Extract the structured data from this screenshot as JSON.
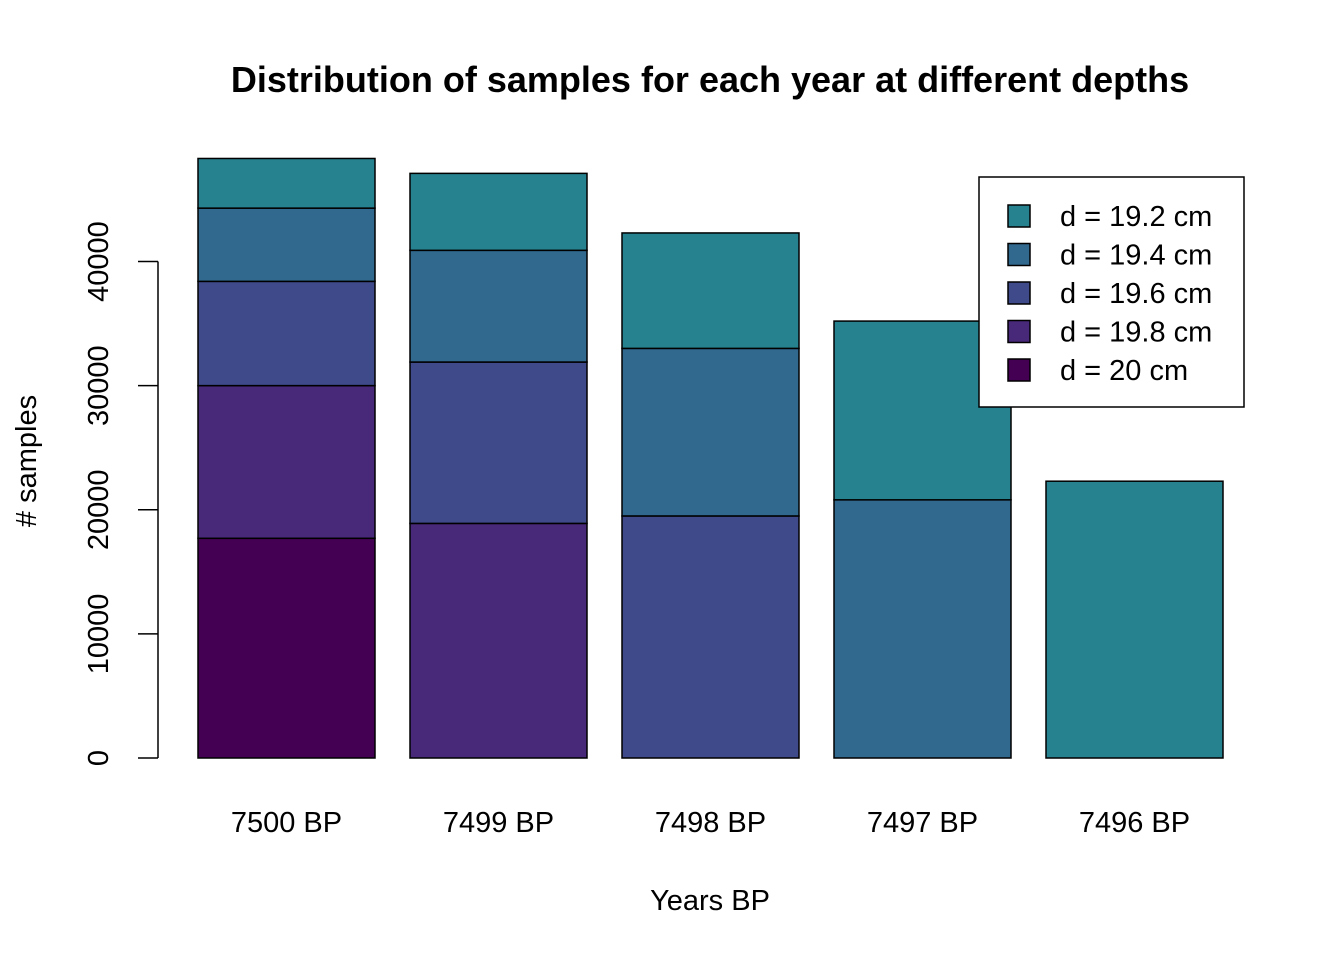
{
  "chart_data": {
    "type": "bar",
    "stacked": true,
    "title": "Distribution of samples for each year at different depths",
    "xlabel": "Years BP",
    "ylabel": "# samples",
    "categories": [
      "7500 BP",
      "7499 BP",
      "7498 BP",
      "7497 BP",
      "7496 BP"
    ],
    "yticks": [
      0,
      10000,
      20000,
      30000,
      40000
    ],
    "ylim": [
      0,
      48500
    ],
    "series": [
      {
        "name": "d = 20 cm",
        "color": "#440154",
        "values": [
          17700,
          0,
          0,
          0,
          0
        ]
      },
      {
        "name": "d = 19.8 cm",
        "color": "#482878",
        "values": [
          12300,
          18900,
          0,
          0,
          0
        ]
      },
      {
        "name": "d = 19.6 cm",
        "color": "#3E4A89",
        "values": [
          8400,
          13000,
          19500,
          0,
          0
        ]
      },
      {
        "name": "d = 19.4 cm",
        "color": "#31688E",
        "values": [
          5900,
          9000,
          13500,
          20800,
          0
        ]
      },
      {
        "name": "d = 19.2 cm",
        "color": "#26828E",
        "values": [
          4000,
          6200,
          9300,
          14400,
          22300
        ]
      }
    ],
    "legend": {
      "position": "top-right",
      "order": [
        "d = 19.2 cm",
        "d = 19.4 cm",
        "d = 19.6 cm",
        "d = 19.8 cm",
        "d = 20 cm"
      ]
    }
  }
}
